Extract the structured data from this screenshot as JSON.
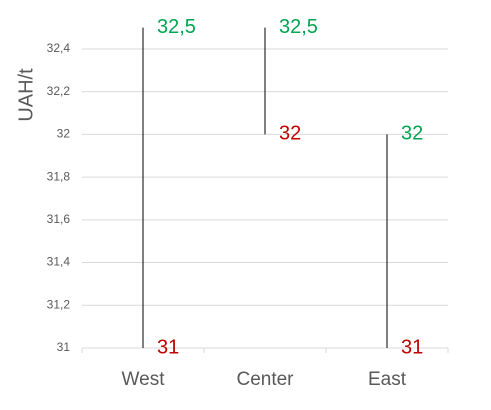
{
  "chart_data": {
    "type": "high-low",
    "y_label": "UAH/t",
    "categories": [
      "West",
      "Center",
      "East"
    ],
    "series": [
      {
        "color": "#00a651",
        "values": [
          32.5,
          32.5,
          32
        ],
        "value_labels": [
          "32,5",
          "32,5",
          "32"
        ]
      },
      {
        "color": "#c00000",
        "values": [
          31,
          32,
          31
        ]
      }
    ],
    "line_color": "#000000",
    "ylim": [
      31,
      32.5
    ],
    "yticks": [
      31,
      {
        "value": 31.2,
        "label": "31,2"
      },
      {
        "value": 31.4,
        "label": "31,4"
      },
      {
        "value": 31.6,
        "label": "31,6"
      },
      {
        "value": 31.8,
        "label": "31,8"
      },
      32,
      {
        "value": 32.2,
        "label": "32,2"
      },
      {
        "value": 32.4,
        "label": "32,4"
      }
    ],
    "grid": true
  }
}
